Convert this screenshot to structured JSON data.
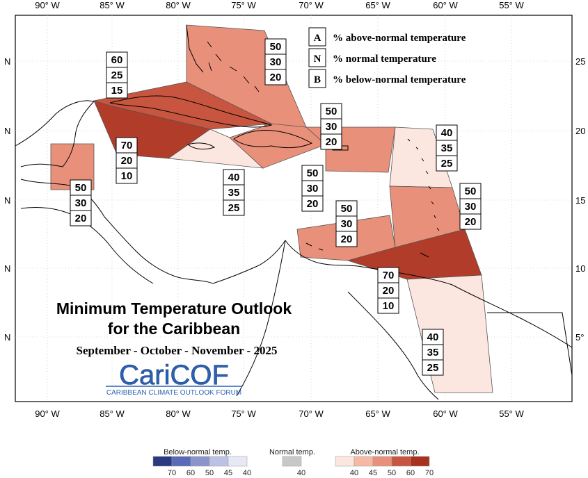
{
  "title": {
    "line1": "Minimum Temperature Outlook",
    "line2": "for the Caribbean",
    "period": "September - October - November - 2025"
  },
  "logo": {
    "name": "CariCOF",
    "tagline": "CARIBBEAN CLIMATE OUTLOOK FORUM",
    "color": "#2a62b4"
  },
  "axes": {
    "lon_ticks": [
      "90° W",
      "85° W",
      "80° W",
      "75° W",
      "70° W",
      "65° W",
      "60° W",
      "55° W"
    ],
    "lat_ticks_left": [
      "N",
      "N",
      "N",
      "N",
      "N"
    ],
    "lat_ticks_right": [
      "25",
      "20",
      "15",
      "10",
      "5°"
    ]
  },
  "key": [
    {
      "letter": "A",
      "text": "% above-normal temperature"
    },
    {
      "letter": "N",
      "text": "% normal temperature"
    },
    {
      "letter": "B",
      "text": "% below-normal temperature"
    }
  ],
  "regions": [
    {
      "id": "bahamas",
      "A": "50",
      "N": "30",
      "B": "20",
      "color": "#e8907a"
    },
    {
      "id": "cuba",
      "A": "60",
      "N": "25",
      "B": "15",
      "color": "#c8553f"
    },
    {
      "id": "cayman",
      "A": "70",
      "N": "20",
      "B": "10",
      "color": "#b23c2a"
    },
    {
      "id": "jamaica",
      "A": "40",
      "N": "35",
      "B": "25",
      "color": "#fbe7e0"
    },
    {
      "id": "belize",
      "A": "50",
      "N": "30",
      "B": "20",
      "color": "#e8907a"
    },
    {
      "id": "hispaniola",
      "A": "50",
      "N": "30",
      "B": "20",
      "color": "#e8907a"
    },
    {
      "id": "puerto-rico",
      "A": "50",
      "N": "30",
      "B": "20",
      "color": "#e8907a"
    },
    {
      "id": "leeward",
      "A": "40",
      "N": "35",
      "B": "25",
      "color": "#fbe7e0"
    },
    {
      "id": "windward",
      "A": "50",
      "N": "30",
      "B": "20",
      "color": "#e8907a"
    },
    {
      "id": "abc",
      "A": "50",
      "N": "30",
      "B": "20",
      "color": "#e8907a"
    },
    {
      "id": "trinidad",
      "A": "70",
      "N": "20",
      "B": "10",
      "color": "#b23c2a"
    },
    {
      "id": "guianas",
      "A": "40",
      "N": "35",
      "B": "25",
      "color": "#fbe7e0"
    }
  ],
  "colorbar": {
    "below_label": "Below-normal temp.",
    "normal_label": "Normal temp.",
    "above_label": "Above-normal temp.",
    "below_values": [
      "70",
      "60",
      "50",
      "45",
      "40"
    ],
    "normal_values": [
      "40"
    ],
    "above_values": [
      "40",
      "45",
      "50",
      "60",
      "70"
    ],
    "below_colors": [
      "#2b3a80",
      "#5a6ab8",
      "#8a95cc",
      "#bcc2e4",
      "#e6e8f5"
    ],
    "normal_color": "#c8c8c8",
    "above_colors": [
      "#fbe7e0",
      "#f5b9a5",
      "#e8907a",
      "#c8553f",
      "#a8321f"
    ]
  }
}
